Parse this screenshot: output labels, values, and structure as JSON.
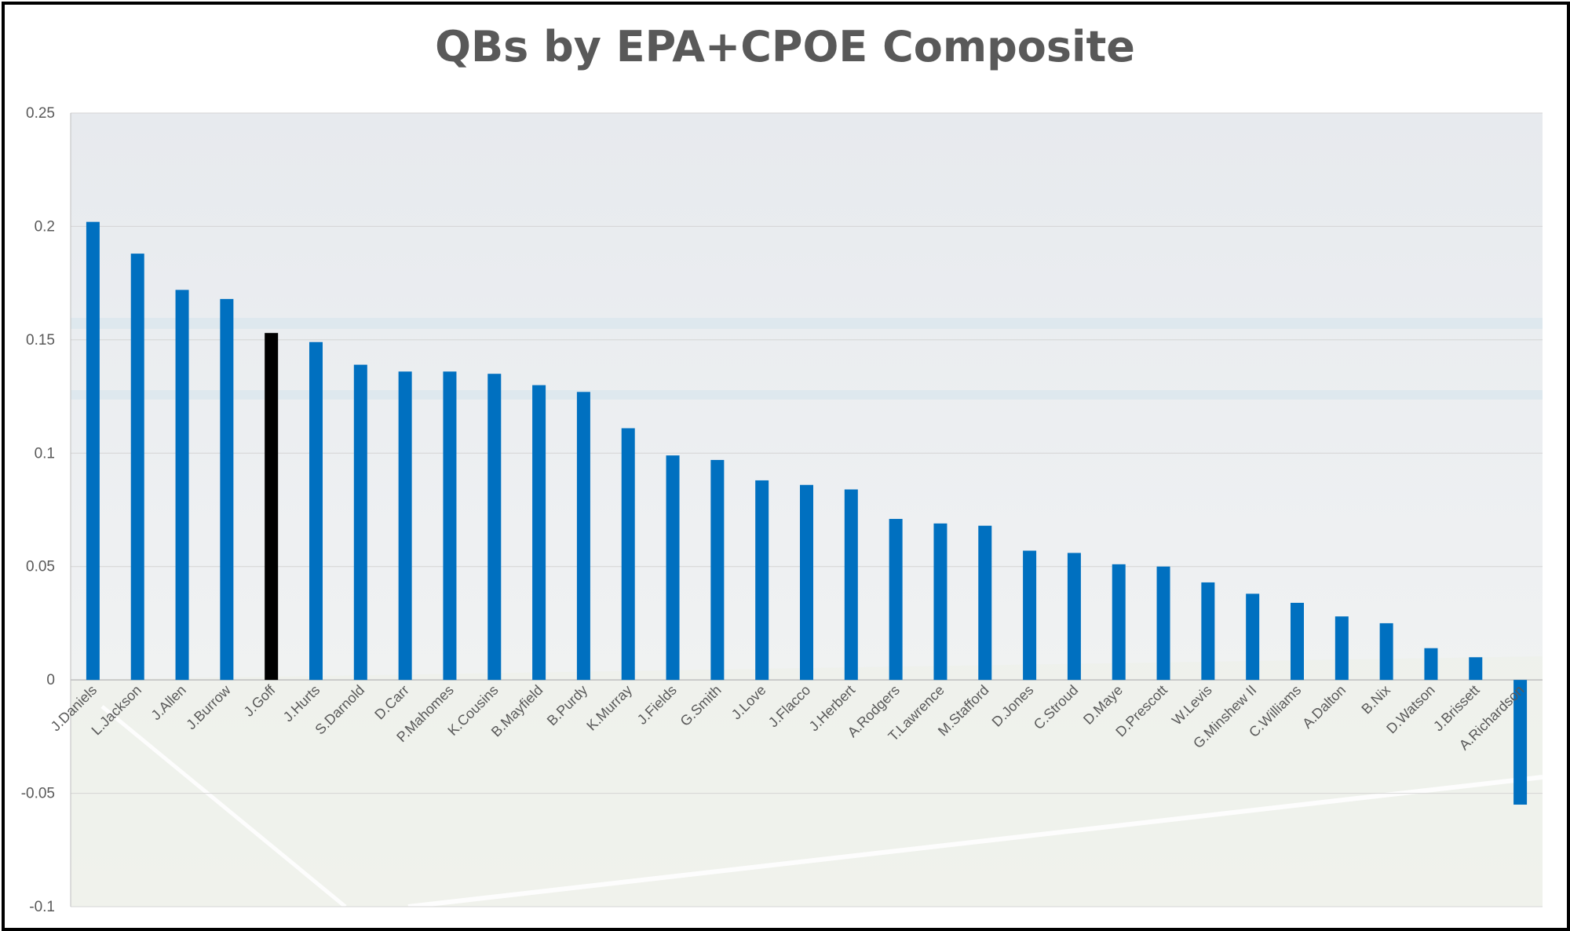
{
  "chart_data": {
    "type": "bar",
    "title": "QBs by EPA+CPOE Composite",
    "xlabel": "",
    "ylabel": "",
    "ylim": [
      -0.1,
      0.25
    ],
    "yticks": [
      "0.25",
      "0.2",
      "0.15",
      "0.1",
      "0.05",
      "0",
      "-0.05",
      "-0.1"
    ],
    "ytick_values": [
      0.25,
      0.2,
      0.15,
      0.1,
      0.05,
      0,
      -0.05,
      -0.1
    ],
    "grid": true,
    "legend": "none",
    "bar_color": "#0070C0",
    "highlight_color": "#000000",
    "highlight_category": "J.Goff",
    "background": "faded stadium photo",
    "categories": [
      "J.Daniels",
      "L.Jackson",
      "J.Allen",
      "J.Burrow",
      "J.Goff",
      "J.Hurts",
      "S.Darnold",
      "D.Carr",
      "P.Mahomes",
      "K.Cousins",
      "B.Mayfield",
      "B.Purdy",
      "K.Murray",
      "J.Fields",
      "G.Smith",
      "J.Love",
      "J.Flacco",
      "J.Herbert",
      "A.Rodgers",
      "T.Lawrence",
      "M.Stafford",
      "D.Jones",
      "C.Stroud",
      "D.Maye",
      "D.Prescott",
      "W.Levis",
      "G.Minshew II",
      "C.Williams",
      "A.Dalton",
      "B.Nix",
      "D.Watson",
      "J.Brissett",
      "A.Richardson"
    ],
    "values": [
      0.202,
      0.188,
      0.172,
      0.168,
      0.153,
      0.149,
      0.139,
      0.136,
      0.136,
      0.135,
      0.13,
      0.127,
      0.111,
      0.099,
      0.097,
      0.088,
      0.086,
      0.084,
      0.071,
      0.069,
      0.068,
      0.057,
      0.056,
      0.051,
      0.05,
      0.043,
      0.038,
      0.034,
      0.028,
      0.025,
      0.014,
      0.01,
      -0.055
    ]
  }
}
